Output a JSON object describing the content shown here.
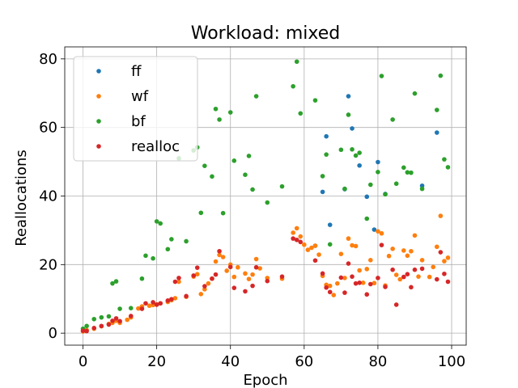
{
  "chart_data": {
    "type": "scatter",
    "title": "Workload: mixed",
    "xlabel": "Epoch",
    "ylabel": "Reallocations",
    "xlim": [
      -4.95,
      103.95
    ],
    "ylim": [
      -3.5,
      83.5
    ],
    "xticks": [
      0,
      20,
      40,
      60,
      80,
      100
    ],
    "yticks": [
      0,
      20,
      40,
      60,
      80
    ],
    "grid": true,
    "legend_position": "top-left",
    "series": [
      {
        "name": "ff",
        "color": "#1f77b4",
        "x": [
          63,
          65,
          66,
          67,
          71,
          72,
          73,
          75,
          77,
          79,
          80,
          82,
          92,
          96
        ],
        "y": [
          25.5,
          41.2,
          57.4,
          31.6,
          42.0,
          69.1,
          59.7,
          48.9,
          39.8,
          30.2,
          49.9,
          40.6,
          43.0,
          58.5
        ]
      },
      {
        "name": "wf",
        "color": "#ff7f0e",
        "x": [
          0,
          1,
          3,
          5,
          7,
          8,
          9,
          10,
          12,
          13,
          15,
          16,
          18,
          19,
          20,
          21,
          23,
          24,
          25,
          26,
          28,
          30,
          31,
          32,
          33,
          34,
          35,
          36,
          37,
          38,
          39,
          40,
          41,
          42,
          44,
          45,
          46,
          47,
          48,
          50,
          54,
          57,
          58,
          59,
          60,
          61,
          62,
          63,
          64,
          65,
          66,
          67,
          68,
          69,
          70,
          71,
          72,
          73,
          74,
          75,
          76,
          77,
          78,
          79,
          80,
          81,
          82,
          83,
          84,
          85,
          86,
          87,
          88,
          89,
          90,
          91,
          92,
          94,
          95,
          96,
          97,
          98,
          99
        ],
        "y": [
          0.5,
          0.9,
          1.3,
          2.0,
          2.7,
          3.0,
          3.6,
          3.0,
          3.9,
          4.6,
          7.2,
          7.8,
          8.0,
          8.2,
          8.4,
          8.7,
          9.1,
          9.6,
          10.2,
          15.0,
          10.6,
          16.5,
          17.2,
          11.4,
          12.8,
          14.5,
          15.9,
          20.9,
          22.8,
          22.2,
          18.2,
          20.0,
          16.4,
          19.2,
          17.4,
          15.8,
          17.1,
          21.6,
          18.9,
          16.1,
          15.9,
          29.3,
          30.6,
          28.2,
          25.8,
          24.3,
          24.9,
          25.5,
          22.9,
          16.7,
          14.1,
          13.8,
          11.1,
          14.5,
          23.1,
          16.1,
          27.6,
          25.6,
          25.4,
          18.3,
          14.7,
          18.7,
          21.3,
          14.6,
          29.7,
          29.1,
          13.9,
          22.5,
          24.6,
          17.0,
          15.7,
          24.1,
          22.6,
          23.9,
          28.5,
          16.5,
          21.3,
          16.4,
          19.3,
          25.2,
          34.2,
          21.0,
          22.0
        ]
      },
      {
        "name": "bf",
        "color": "#2ca02c",
        "x": [
          0,
          1,
          3,
          5,
          7,
          8,
          9,
          10,
          13,
          16,
          17,
          19,
          20,
          21,
          23,
          24,
          26,
          28,
          30,
          31,
          32,
          33,
          35,
          36,
          37,
          38,
          40,
          41,
          44,
          45,
          46,
          47,
          50,
          54,
          57,
          58,
          59,
          63,
          65,
          66,
          67,
          70,
          71,
          72,
          73,
          74,
          75,
          77,
          78,
          80,
          81,
          82,
          84,
          85,
          87,
          88,
          89,
          90,
          92,
          96,
          97,
          98,
          99
        ],
        "y": [
          1.3,
          2.1,
          4.1,
          4.6,
          4.9,
          14.5,
          15.1,
          7.1,
          7.3,
          15.9,
          22.6,
          21.8,
          32.6,
          32.0,
          24.5,
          27.4,
          51.0,
          26.8,
          53.3,
          54.2,
          35.1,
          48.8,
          45.7,
          65.4,
          62.3,
          35.0,
          64.4,
          50.3,
          46.2,
          51.7,
          41.9,
          69.1,
          38.1,
          42.8,
          72.0,
          79.2,
          64.1,
          67.9,
          45.8,
          52.1,
          25.9,
          53.5,
          42.1,
          63.7,
          53.6,
          51.8,
          52.6,
          33.4,
          43.3,
          47.0,
          75.0,
          40.5,
          62.3,
          43.6,
          48.3,
          46.9,
          46.8,
          69.9,
          42.1,
          65.1,
          75.1,
          50.7,
          48.4
        ]
      },
      {
        "name": "realloc",
        "color": "#d62728",
        "x": [
          0,
          1,
          3,
          5,
          7,
          8,
          9,
          10,
          13,
          16,
          17,
          19,
          20,
          21,
          23,
          24,
          25,
          26,
          28,
          30,
          31,
          33,
          35,
          36,
          37,
          40,
          41,
          44,
          46,
          47,
          50,
          54,
          57,
          58,
          59,
          63,
          65,
          66,
          67,
          70,
          71,
          72,
          73,
          74,
          75,
          77,
          78,
          80,
          81,
          82,
          84,
          85,
          87,
          88,
          89,
          90,
          92,
          96,
          97,
          98,
          99
        ],
        "y": [
          0.7,
          0.6,
          1.5,
          2.1,
          2.5,
          3.6,
          4.3,
          3.5,
          5.0,
          7.1,
          8.7,
          9.0,
          8.3,
          8.7,
          9.5,
          9.9,
          15.0,
          16.1,
          10.8,
          16.8,
          19.1,
          13.7,
          15.9,
          17.1,
          23.9,
          19.3,
          13.2,
          12.2,
          13.8,
          19.2,
          15.2,
          16.5,
          27.6,
          27.2,
          26.6,
          21.2,
          17.4,
          13.3,
          12.0,
          16.2,
          11.8,
          20.3,
          16.5,
          14.5,
          14.7,
          11.3,
          14.3,
          16.1,
          25.7,
          13.5,
          18.5,
          8.3,
          16.4,
          17.2,
          13.4,
          18.5,
          18.8,
          15.7,
          23.6,
          17.3,
          15.0
        ]
      }
    ]
  }
}
